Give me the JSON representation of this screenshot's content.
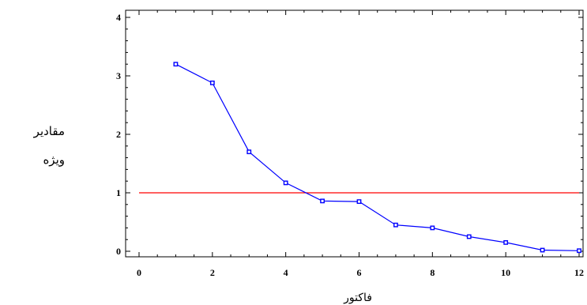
{
  "chart_data": {
    "type": "line",
    "title": "",
    "xlabel": "فاکتور",
    "ylabel_lines": [
      "مقادیر",
      "ویژه"
    ],
    "xlim": [
      0,
      12
    ],
    "ylim": [
      0,
      4
    ],
    "x_ticks": [
      0,
      2,
      4,
      6,
      8,
      10,
      12
    ],
    "y_ticks": [
      0,
      1,
      2,
      3,
      4
    ],
    "grid": false,
    "series": [
      {
        "x": [
          1,
          2,
          3,
          4,
          5,
          6,
          7,
          8,
          9,
          10,
          11,
          12
        ],
        "values": [
          3.2,
          2.88,
          1.7,
          1.17,
          0.86,
          0.85,
          0.45,
          0.4,
          0.25,
          0.15,
          0.02,
          0.01
        ],
        "color": "#0000ff",
        "marker": "square"
      }
    ],
    "reference_lines": [
      {
        "orientation": "horizontal",
        "value": 1,
        "color": "#ff0000"
      }
    ]
  }
}
